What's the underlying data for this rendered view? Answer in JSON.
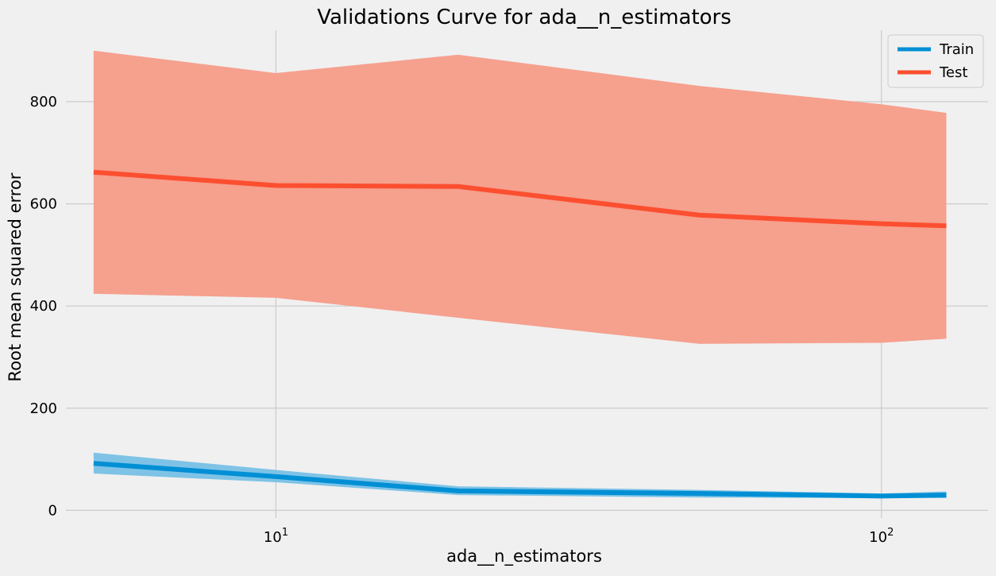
{
  "chart_data": {
    "type": "line",
    "title": "Validations Curve for ada__n_estimators",
    "xlabel": "ada__n_estimators",
    "ylabel": "Root mean squared error",
    "x_scale": "log",
    "xlim": [
      4.5,
      150
    ],
    "ylim": [
      -15,
      940
    ],
    "x_ticks": [
      {
        "value": 10,
        "base": "10",
        "exp": "1"
      },
      {
        "value": 100,
        "base": "10",
        "exp": "2"
      }
    ],
    "y_ticks": [
      0,
      200,
      400,
      600,
      800
    ],
    "x": [
      5,
      10,
      20,
      50,
      100,
      128
    ],
    "series": [
      {
        "name": "Train",
        "color": "#008fd5",
        "band_color": "#7ec3e6",
        "mean": [
          92,
          66,
          38,
          33,
          28,
          30
        ],
        "lower": [
          72,
          55,
          30,
          25,
          24,
          24
        ],
        "upper": [
          113,
          79,
          47,
          40,
          33,
          37
        ]
      },
      {
        "name": "Test",
        "color": "#fc4f30",
        "band_color": "#f6a08e",
        "mean": [
          662,
          636,
          634,
          578,
          561,
          557
        ],
        "lower": [
          424,
          416,
          377,
          326,
          328,
          336
        ],
        "upper": [
          900,
          856,
          892,
          831,
          795,
          778
        ]
      }
    ],
    "grid": true,
    "legend_position": "top-right"
  }
}
